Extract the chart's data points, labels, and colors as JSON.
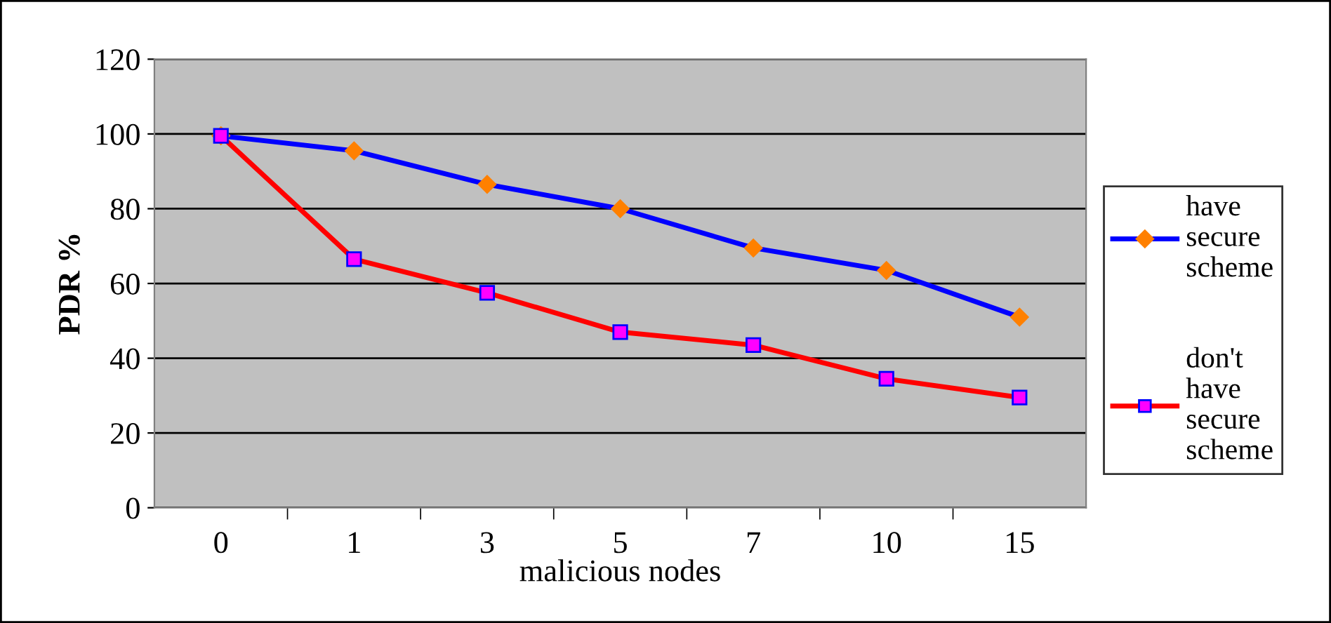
{
  "chart_data": {
    "type": "line",
    "xlabel": "malicious nodes",
    "ylabel": "PDR %",
    "categories": [
      "0",
      "1",
      "3",
      "5",
      "7",
      "10",
      "15"
    ],
    "series": [
      {
        "name": "have secure scheme",
        "color": "#0000ff",
        "marker": "diamond",
        "colors": [
          "#ff8000",
          "#ff8000",
          "#ff8000",
          "#ff8000",
          "#ff8000",
          "#ff8000",
          "#ff8000"
        ],
        "values": [
          99.5,
          95.5,
          86.5,
          80,
          69.5,
          63.5,
          51
        ]
      },
      {
        "name": "don't have secure scheme",
        "color": "#ff0000",
        "marker": "square",
        "colors": [
          "#ff00ff",
          "#ff00ff",
          "#ff00ff",
          "#ff00ff",
          "#ff00ff",
          "#ff00ff",
          "#ff00ff"
        ],
        "values": [
          99.5,
          66.5,
          57.5,
          47,
          43.5,
          34.5,
          29.5
        ]
      }
    ],
    "ylim": [
      0,
      120
    ],
    "yticks": [
      0,
      20,
      40,
      60,
      80,
      100,
      120
    ],
    "grid": "y",
    "legend": "right"
  }
}
